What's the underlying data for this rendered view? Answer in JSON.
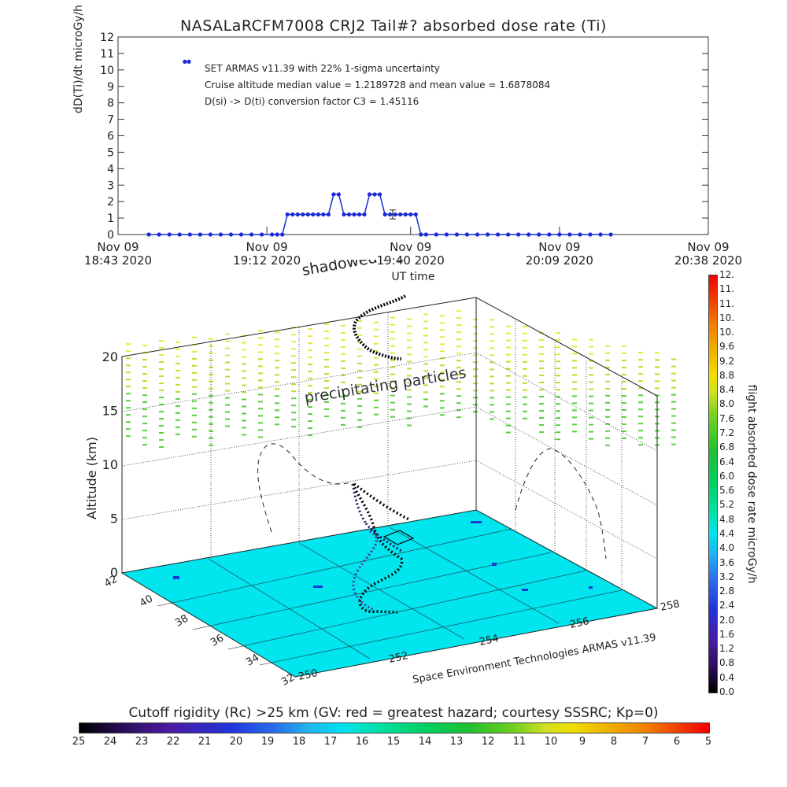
{
  "title": "NASALaRCFM7008   CRJ2 Tail#? absorbed dose rate (Ti)",
  "annotations": [
    "SET ARMAS v11.39 with 22% 1-sigma uncertainty",
    "Cruise altitude median value = 1.2189728 and mean value = 1.6878084",
    "D(si) -> D(ti) conversion factor C3 = 1.45116"
  ],
  "credit": "Space Environment Technologies ARMAS v11.39",
  "labels_3d": {
    "shadowed": "shadowed flight path",
    "precip": "precipitating particles",
    "altitude_axis": "Altitude (km)",
    "cbar_title": "flight absorbed dose rate microGy/h"
  },
  "colorbar_ticks": [
    "0.0",
    "0.4",
    "0.8",
    "1.2",
    "1.6",
    "2.0",
    "2.4",
    "2.8",
    "3.2",
    "3.6",
    "4.0",
    "4.4",
    "4.8",
    "5.2",
    "5.6",
    "6.0",
    "6.4",
    "6.8",
    "7.2",
    "7.6",
    "8.0",
    "8.4",
    "8.8",
    "9.2",
    "9.6",
    "10.",
    "10.",
    "11.",
    "11.",
    "12."
  ],
  "bottom_bar": {
    "title": "Cutoff rigidity (Rc) >25 km (GV: red = greatest hazard; courtesy SSSRC; Kp=0)",
    "ticks": [
      "25",
      "24",
      "23",
      "22",
      "21",
      "20",
      "19",
      "18",
      "17",
      "16",
      "15",
      "14",
      "13",
      "12",
      "11",
      "10",
      "9",
      "8",
      "7",
      "6",
      "5"
    ]
  },
  "axis3d": {
    "alt_ticks": [
      "0",
      "5",
      "10",
      "15",
      "20"
    ],
    "lat_ticks": [
      "42",
      "40",
      "38",
      "36",
      "34",
      "32"
    ],
    "lon_ticks": [
      "250",
      "252",
      "254",
      "256",
      "258"
    ]
  },
  "chart_data": {
    "type": "line",
    "title": "NASALaRCFM7008   CRJ2 Tail#? absorbed dose rate (Ti)",
    "xlabel": "UT time",
    "ylabel": "dD(Ti)/dt microGy/h",
    "ylim": [
      0,
      12
    ],
    "xlim_minutes": [
      0,
      115
    ],
    "yticks": [
      "0",
      "1",
      "2",
      "3",
      "4",
      "5",
      "6",
      "7",
      "8",
      "9",
      "10",
      "11",
      "12"
    ],
    "xticks": [
      {
        "m": 0,
        "label": "Nov 09\n18:43 2020"
      },
      {
        "m": 29,
        "label": "Nov 09\n19:12 2020"
      },
      {
        "m": 57,
        "label": "Nov 09\n19:40 2020"
      },
      {
        "m": 86,
        "label": "Nov 09\n20:09 2020"
      },
      {
        "m": 115,
        "label": "Nov 09\n20:38 2020"
      }
    ],
    "series": [
      {
        "color": "#1a2bd6",
        "x_minutes": [
          6,
          8,
          10,
          12,
          14,
          16,
          18,
          20,
          22,
          24,
          26,
          28,
          30,
          31,
          32,
          33,
          34,
          35,
          36,
          37,
          38,
          39,
          40,
          41,
          42,
          43,
          44,
          45,
          46,
          47,
          48,
          49,
          50,
          51,
          52,
          53,
          54,
          55,
          56,
          57,
          58,
          59,
          60,
          62,
          64,
          66,
          68,
          70,
          72,
          74,
          76,
          78,
          80,
          82,
          84,
          86,
          88,
          90,
          92,
          94,
          96
        ],
        "y": [
          0,
          0,
          0,
          0,
          0,
          0,
          0,
          0,
          0,
          0,
          0,
          0,
          0,
          0,
          0,
          1.22,
          1.22,
          1.22,
          1.22,
          1.22,
          1.22,
          1.22,
          1.22,
          1.22,
          2.44,
          2.44,
          1.22,
          1.22,
          1.22,
          1.22,
          1.22,
          2.44,
          2.44,
          2.44,
          1.22,
          1.22,
          1.22,
          1.22,
          1.22,
          1.22,
          1.22,
          0,
          0,
          0,
          0,
          0,
          0,
          0,
          0,
          0,
          0,
          0,
          0,
          0,
          0,
          0,
          0,
          0,
          0,
          0,
          0
        ]
      }
    ],
    "outlier": {
      "x_minutes": [
        13,
        13.8
      ],
      "y": [
        10.5,
        10.5
      ]
    },
    "errorbar": {
      "x_minutes": 53.5,
      "y": 1.22,
      "err": 0.27
    }
  }
}
